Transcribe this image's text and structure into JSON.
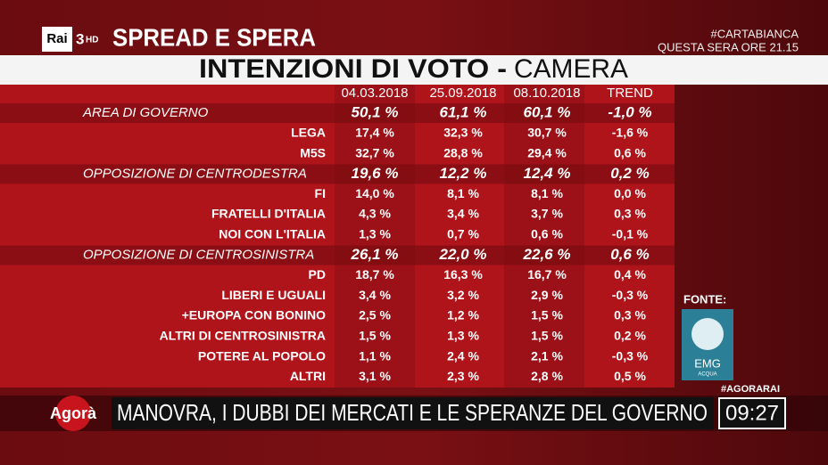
{
  "channel": {
    "logo": "Rai",
    "number": "3",
    "hd": "HD"
  },
  "show_title": "SPREAD E SPERA",
  "promo": {
    "tag": "#CARTABIANCA",
    "time": "QUESTA SERA ORE 21.15"
  },
  "title": {
    "main": "INTENZIONI DI VOTO -",
    "sub": "CAMERA"
  },
  "table": {
    "columns": [
      "04.03.2018",
      "25.09.2018",
      "08.10.2018",
      "TREND"
    ],
    "rows": [
      {
        "area": "AREA DI GOVERNO",
        "values": [
          "50,1 %",
          "61,1 %",
          "60,1 %",
          "-1,0 %"
        ]
      },
      {
        "party": "LEGA",
        "values": [
          "17,4 %",
          "32,3 %",
          "30,7 %",
          "-1,6 %"
        ]
      },
      {
        "party": "M5S",
        "values": [
          "32,7 %",
          "28,8 %",
          "29,4 %",
          "0,6 %"
        ]
      },
      {
        "area": "OPPOSIZIONE DI CENTRODESTRA",
        "values": [
          "19,6 %",
          "12,2 %",
          "12,4 %",
          "0,2 %"
        ]
      },
      {
        "party": "FI",
        "values": [
          "14,0 %",
          "8,1 %",
          "8,1 %",
          "0,0 %"
        ]
      },
      {
        "party": "FRATELLI D'ITALIA",
        "values": [
          "4,3 %",
          "3,4 %",
          "3,7 %",
          "0,3 %"
        ]
      },
      {
        "party": "NOI CON L'ITALIA",
        "values": [
          "1,3 %",
          "0,7 %",
          "0,6 %",
          "-0,1 %"
        ]
      },
      {
        "area": "OPPOSIZIONE DI CENTROSINISTRA",
        "values": [
          "26,1 %",
          "22,0 %",
          "22,6 %",
          "0,6 %"
        ]
      },
      {
        "party": "PD",
        "values": [
          "18,7 %",
          "16,3 %",
          "16,7 %",
          "0,4 %"
        ]
      },
      {
        "party": "LIBERI E UGUALI",
        "values": [
          "3,4 %",
          "3,2 %",
          "2,9 %",
          "-0,3 %"
        ]
      },
      {
        "party": "+EUROPA CON BONINO",
        "values": [
          "2,5 %",
          "1,2 %",
          "1,5 %",
          "0,3 %"
        ]
      },
      {
        "party": "ALTRI DI CENTROSINISTRA",
        "values": [
          "1,5 %",
          "1,3 %",
          "1,5 %",
          "0,2 %"
        ]
      },
      {
        "party": "POTERE AL POPOLO",
        "values": [
          "1,1 %",
          "2,4 %",
          "2,1 %",
          "-0,3 %"
        ]
      },
      {
        "party": "ALTRI",
        "values": [
          "3,1 %",
          "2,3 %",
          "2,8 %",
          "0,5 %"
        ]
      }
    ]
  },
  "source": {
    "label": "FONTE:",
    "logo": "EMG",
    "logo_sub": "ACQUA"
  },
  "ticker": {
    "hashtag": "#AGORARAI",
    "program": "Agorà",
    "headline": "MANOVRA, I DUBBI DEI MERCATI E LE SPERANZE DEL GOVERNO",
    "clock": "09:27"
  }
}
